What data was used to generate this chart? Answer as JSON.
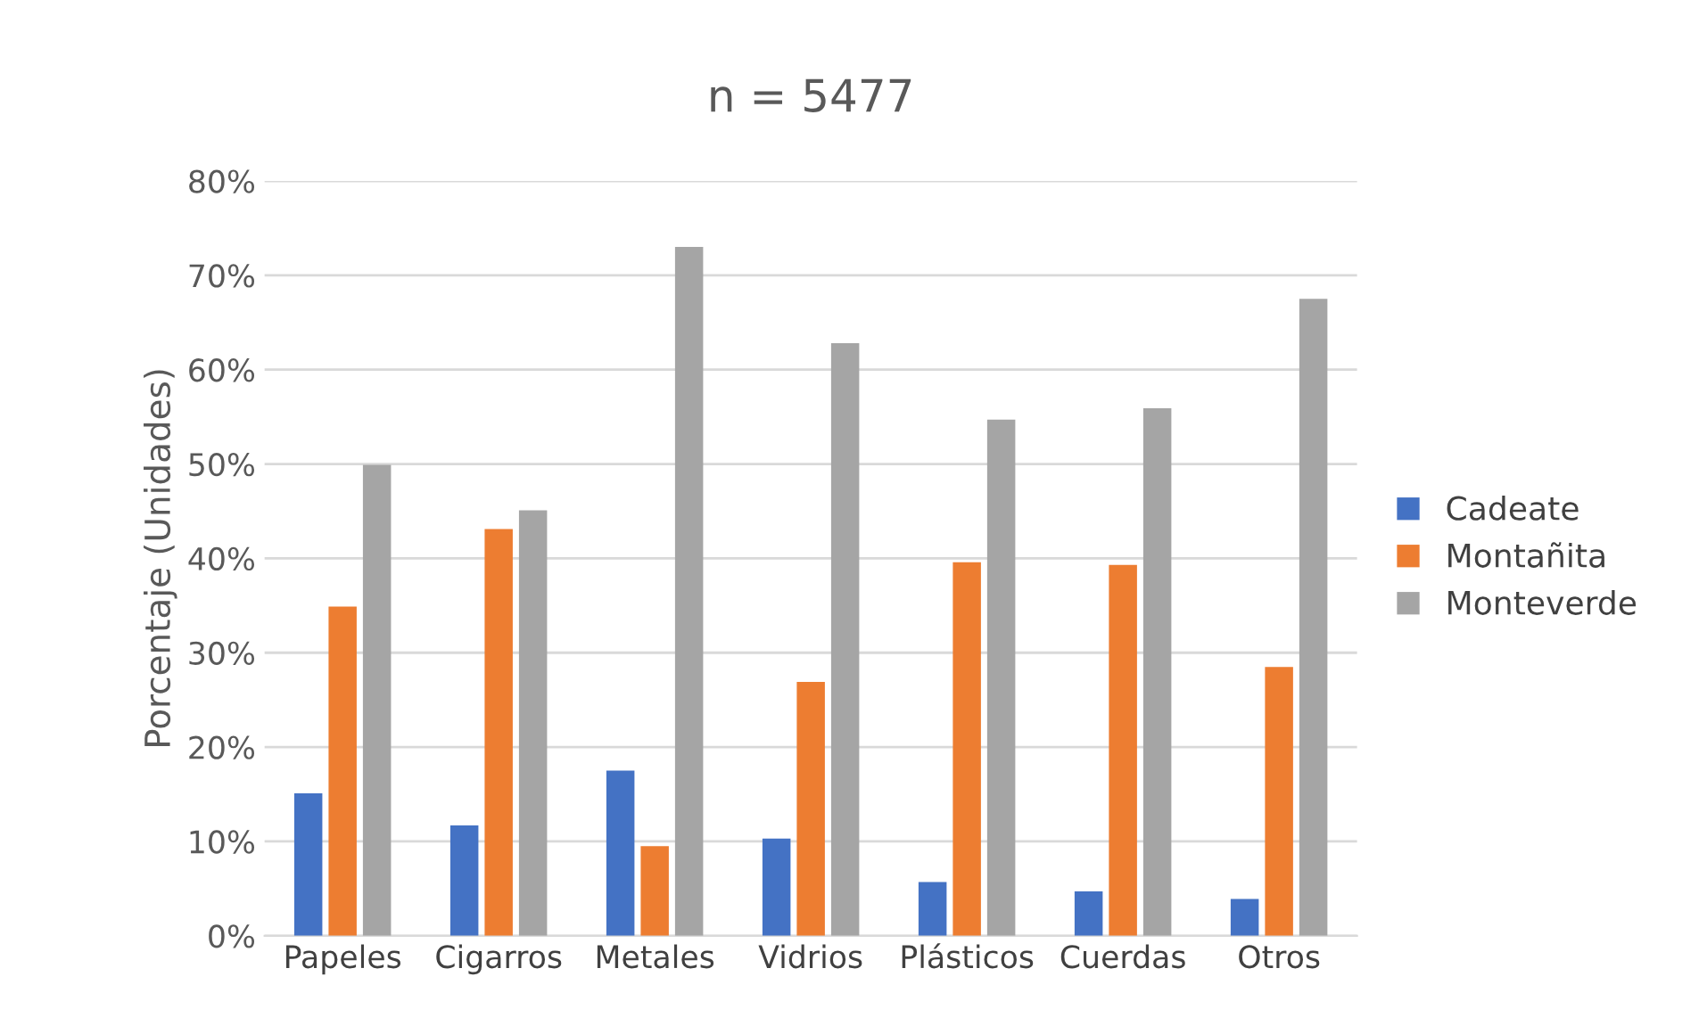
{
  "chart_data": {
    "type": "bar",
    "title": "n = 5477",
    "ylabel": "Porcentaje (Unidades)",
    "categories": [
      "Papeles",
      "Cigarros",
      "Metales",
      "Vidrios",
      "Plásticos",
      "Cuerdas",
      "Otros"
    ],
    "series": [
      {
        "name": "Cadeate",
        "color": "#4472c4",
        "values": [
          15.1,
          11.7,
          17.5,
          10.3,
          5.7,
          4.7,
          3.9
        ]
      },
      {
        "name": "Montañita",
        "color": "#ed7d31",
        "values": [
          34.9,
          43.1,
          9.5,
          26.9,
          39.6,
          39.3,
          28.5
        ]
      },
      {
        "name": "Monteverde",
        "color": "#a5a5a5",
        "values": [
          49.9,
          45.1,
          73.0,
          62.8,
          54.7,
          55.9,
          67.5
        ]
      }
    ],
    "ylim": [
      0,
      80
    ],
    "yticks": [
      {
        "value": 0,
        "label": "0%"
      },
      {
        "value": 10,
        "label": "10%"
      },
      {
        "value": 20,
        "label": "20%"
      },
      {
        "value": 30,
        "label": "30%"
      },
      {
        "value": 40,
        "label": "40%"
      },
      {
        "value": 50,
        "label": "50%"
      },
      {
        "value": 60,
        "label": "60%"
      },
      {
        "value": 70,
        "label": "70%"
      },
      {
        "value": 80,
        "label": "80%"
      }
    ],
    "grid": "y",
    "legend": "right"
  }
}
